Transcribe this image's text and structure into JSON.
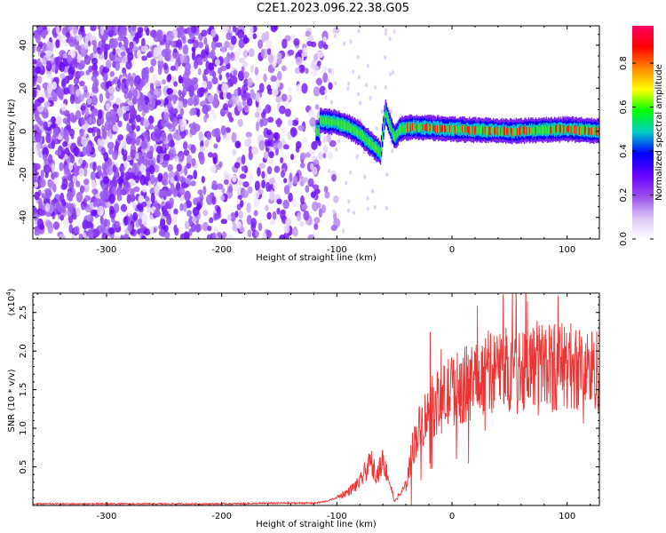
{
  "title": "C2E1.2023.096.22.38.G05",
  "chart_data": [
    {
      "type": "heatmap",
      "xlabel": "Height of straight line (km)",
      "ylabel": "Frequency (Hz)",
      "xlim": [
        -364,
        128
      ],
      "ylim": [
        -50,
        49
      ],
      "xticks": [
        -300,
        -200,
        -100,
        0,
        100
      ],
      "yticks": [
        -40,
        -20,
        0,
        20,
        40
      ],
      "grid": false,
      "colorbar": {
        "label": "Normalized spectral amplitude",
        "range": [
          0.0,
          0.97
        ],
        "ticks": [
          0.0,
          0.2,
          0.4,
          0.6,
          0.8
        ],
        "colors": [
          "#ffffff",
          "#d9c4f5",
          "#9a4dee",
          "#6600ff",
          "#0000ff",
          "#00cccc",
          "#00ff00",
          "#ffff00",
          "#ff8800",
          "#ff0000",
          "#ff0066"
        ]
      },
      "features": {
        "noise_region_x": [
          -364,
          -110
        ],
        "signal_line": [
          {
            "x": -115,
            "y": 5
          },
          {
            "x": -100,
            "y": 4
          },
          {
            "x": -90,
            "y": 2
          },
          {
            "x": -80,
            "y": -1
          },
          {
            "x": -70,
            "y": -6
          },
          {
            "x": -62,
            "y": -10
          },
          {
            "x": -58,
            "y": 9
          },
          {
            "x": -50,
            "y": -3
          },
          {
            "x": -45,
            "y": 1
          },
          {
            "x": -35,
            "y": 2
          },
          {
            "x": 0,
            "y": 1
          },
          {
            "x": 50,
            "y": 0
          },
          {
            "x": 100,
            "y": 1
          },
          {
            "x": 128,
            "y": 0
          }
        ]
      }
    },
    {
      "type": "line",
      "xlabel": "Height of straight line (km)",
      "ylabel": "SNR (10 * v/v)",
      "y_multiplier": "(x10",
      "y_multiplier_exp": "4",
      "y_multiplier_close": ")",
      "xlim": [
        -364,
        128
      ],
      "ylim": [
        0,
        2.75
      ],
      "xticks": [
        -300,
        -200,
        -100,
        0,
        100
      ],
      "yticks": [
        0.5,
        1.0,
        1.5,
        2.0,
        2.5
      ],
      "color": "#ee3333",
      "series": [
        {
          "x": [
            -364,
            -300,
            -200,
            -150,
            -120,
            -110,
            -100,
            -90,
            -80,
            -75,
            -70,
            -65,
            -60,
            -55,
            -50,
            -45,
            -40,
            -35,
            -30,
            -25,
            -20,
            -10,
            0,
            10,
            20,
            30,
            40,
            50,
            60,
            70,
            80,
            90,
            100,
            110,
            120,
            128
          ],
          "values": [
            0.02,
            0.02,
            0.02,
            0.03,
            0.03,
            0.05,
            0.1,
            0.18,
            0.3,
            0.45,
            0.55,
            0.4,
            0.6,
            0.35,
            0.05,
            0.15,
            0.25,
            0.7,
            0.95,
            1.1,
            1.25,
            1.35,
            1.5,
            1.55,
            1.65,
            1.72,
            1.75,
            1.78,
            1.8,
            1.82,
            1.85,
            1.8,
            1.82,
            1.78,
            1.75,
            1.75
          ]
        }
      ]
    }
  ]
}
